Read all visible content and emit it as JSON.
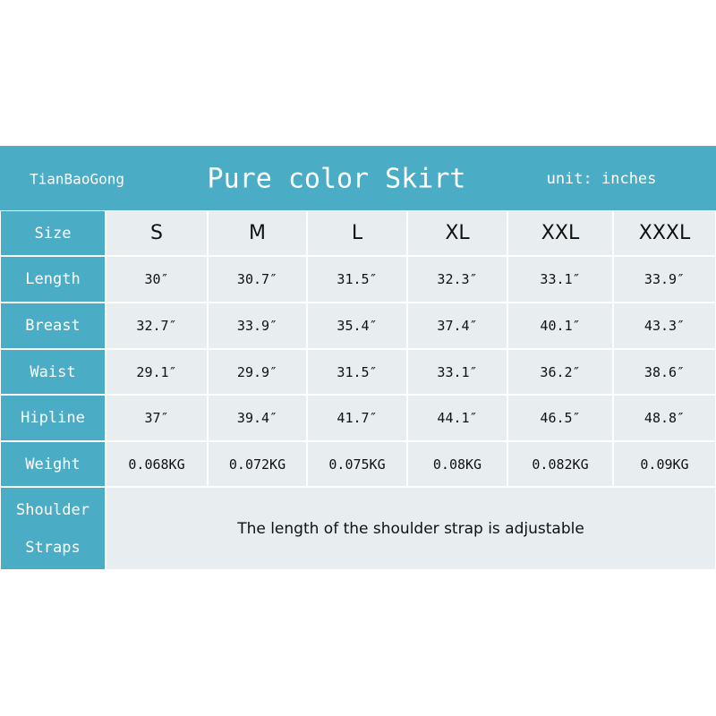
{
  "header": {
    "brand": "TianBaoGong",
    "title": "Pure color Skirt",
    "unit": "unit: inches"
  },
  "table": {
    "size_label": "Size",
    "sizes": [
      "S",
      "M",
      "L",
      "XL",
      "XXL",
      "XXXL"
    ],
    "rows": [
      {
        "label": "Length",
        "values": [
          "30″",
          "30.7″",
          "31.5″",
          "32.3″",
          "33.1″",
          "33.9″"
        ]
      },
      {
        "label": "Breast",
        "values": [
          "32.7″",
          "33.9″",
          "35.4″",
          "37.4″",
          "40.1″",
          "43.3″"
        ]
      },
      {
        "label": "Waist",
        "values": [
          "29.1″",
          "29.9″",
          "31.5″",
          "33.1″",
          "36.2″",
          "38.6″"
        ]
      },
      {
        "label": "Hipline",
        "values": [
          "37″",
          "39.4″",
          "41.7″",
          "44.1″",
          "46.5″",
          "48.8″"
        ]
      },
      {
        "label": "Weight",
        "values": [
          "0.068KG",
          "0.072KG",
          "0.075KG",
          "0.08KG",
          "0.082KG",
          "0.09KG"
        ]
      }
    ],
    "note_label": "Shoulder Straps",
    "note": "The length of the shoulder strap is adjustable"
  }
}
